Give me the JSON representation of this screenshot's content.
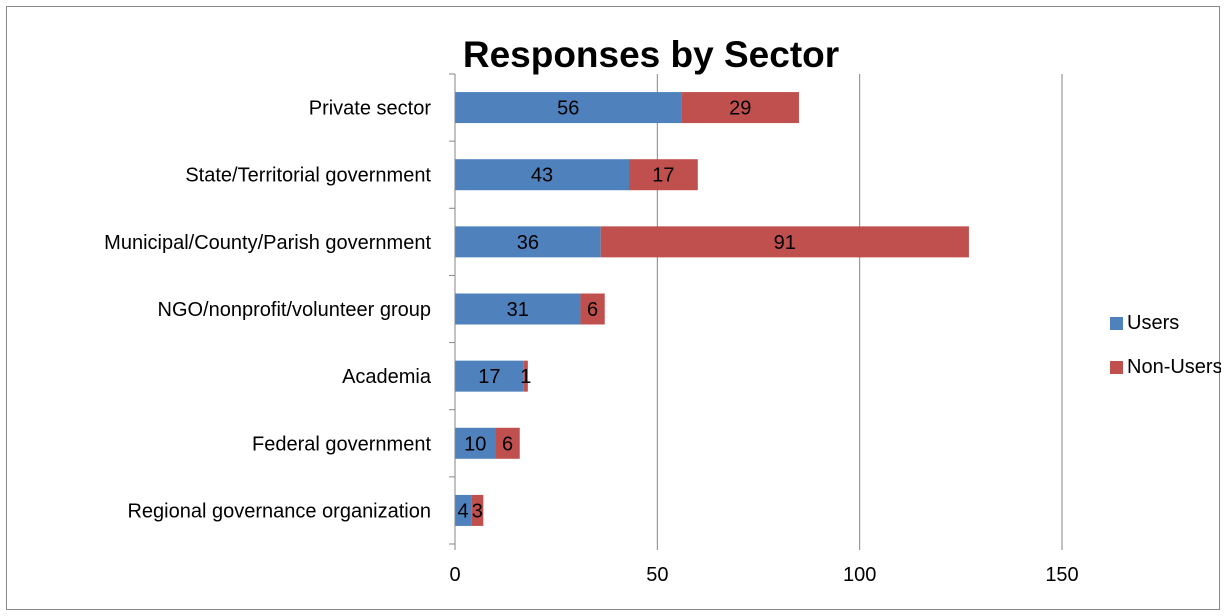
{
  "chart_data": {
    "type": "bar",
    "orientation": "horizontal",
    "stacked": true,
    "title": "Responses by Sector",
    "categories": [
      "Private sector",
      "State/Territorial government",
      "Municipal/County/Parish government",
      "NGO/nonprofit/volunteer group",
      "Academia",
      "Federal government",
      "Regional governance organization"
    ],
    "series": [
      {
        "name": "Users",
        "color": "#4f81bd",
        "values": [
          56,
          43,
          36,
          31,
          17,
          10,
          4
        ]
      },
      {
        "name": "Non-Users",
        "color": "#c0504d",
        "values": [
          29,
          17,
          91,
          6,
          1,
          6,
          3
        ]
      }
    ],
    "xlim": [
      0,
      150
    ],
    "x_ticks": [
      0,
      50,
      100,
      150
    ],
    "grid": true,
    "legend": "right"
  }
}
